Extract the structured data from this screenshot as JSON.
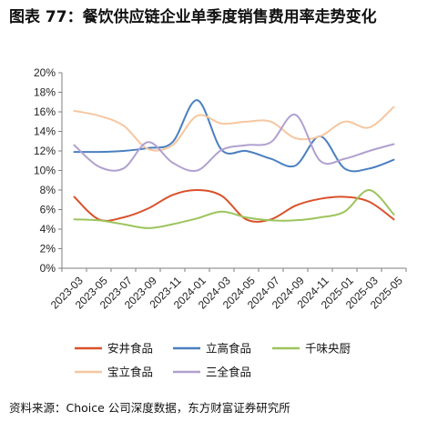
{
  "figure": {
    "title": "图表 77：餐饮供应链企业单季度销售费用率走势变化",
    "source": "资料来源：Choice 公司深度数据，东方财富证券研究所"
  },
  "chart_data": {
    "type": "line",
    "title": "",
    "xlabel": "",
    "ylabel": "",
    "x": [
      "2023-03",
      "2023-05",
      "2023-07",
      "2023-09",
      "2023-11",
      "2024-01",
      "2024-03",
      "2024-05",
      "2024-07",
      "2024-09",
      "2024-11",
      "2025-01",
      "2025-03",
      "2025-05"
    ],
    "y_ticks": [
      "0%",
      "2%",
      "4%",
      "6%",
      "8%",
      "10%",
      "12%",
      "14%",
      "16%",
      "18%",
      "20%"
    ],
    "ylim": [
      0,
      20
    ],
    "grid": false,
    "smooth": true,
    "legend_position": "bottom",
    "series": [
      {
        "name": "安井食品",
        "color": "#d9512b",
        "points": [
          [
            0,
            7.3
          ],
          [
            1,
            5.0
          ],
          [
            2,
            5.2
          ],
          [
            3,
            6.1
          ],
          [
            4,
            7.5
          ],
          [
            5,
            8.0
          ],
          [
            6,
            7.4
          ],
          [
            7,
            5.0
          ],
          [
            8,
            5.0
          ],
          [
            9,
            6.4
          ],
          [
            10,
            7.1
          ],
          [
            11,
            7.3
          ],
          [
            12,
            6.8
          ],
          [
            13,
            5.0
          ]
        ]
      },
      {
        "name": "立高食品",
        "color": "#4a7fc0",
        "points": [
          [
            0,
            11.9
          ],
          [
            1,
            11.9
          ],
          [
            2,
            12.0
          ],
          [
            3,
            12.3
          ],
          [
            4,
            12.9
          ],
          [
            5,
            17.2
          ],
          [
            6,
            12.1
          ],
          [
            7,
            12.0
          ],
          [
            8,
            11.2
          ],
          [
            9,
            10.5
          ],
          [
            10,
            13.5
          ],
          [
            11,
            10.2
          ],
          [
            12,
            10.2
          ],
          [
            13,
            11.1
          ]
        ]
      },
      {
        "name": "千味央厨",
        "color": "#9cc45c",
        "points": [
          [
            0,
            5.0
          ],
          [
            1,
            4.9
          ],
          [
            2,
            4.5
          ],
          [
            3,
            4.1
          ],
          [
            4,
            4.5
          ],
          [
            5,
            5.1
          ],
          [
            6,
            5.8
          ],
          [
            7,
            5.2
          ],
          [
            8,
            4.9
          ],
          [
            9,
            4.9
          ],
          [
            10,
            5.2
          ],
          [
            11,
            5.8
          ],
          [
            12,
            8.0
          ],
          [
            13,
            5.5
          ]
        ]
      },
      {
        "name": "宝立食品",
        "color": "#f6c6a0",
        "points": [
          [
            0,
            16.1
          ],
          [
            1,
            15.6
          ],
          [
            2,
            14.6
          ],
          [
            3,
            12.2
          ],
          [
            4,
            12.6
          ],
          [
            5,
            15.6
          ],
          [
            6,
            14.8
          ],
          [
            7,
            15.0
          ],
          [
            8,
            15.0
          ],
          [
            9,
            13.3
          ],
          [
            10,
            13.5
          ],
          [
            11,
            15.0
          ],
          [
            12,
            14.4
          ],
          [
            13,
            16.5
          ]
        ]
      },
      {
        "name": "三全食品",
        "color": "#b0a0d0",
        "points": [
          [
            0,
            12.6
          ],
          [
            1,
            10.4
          ],
          [
            2,
            10.2
          ],
          [
            3,
            12.9
          ],
          [
            4,
            10.8
          ],
          [
            5,
            10.0
          ],
          [
            6,
            12.1
          ],
          [
            7,
            12.6
          ],
          [
            8,
            12.9
          ],
          [
            9,
            15.7
          ],
          [
            10,
            11.0
          ],
          [
            11,
            11.2
          ],
          [
            12,
            12.0
          ],
          [
            13,
            12.7
          ]
        ]
      }
    ]
  }
}
